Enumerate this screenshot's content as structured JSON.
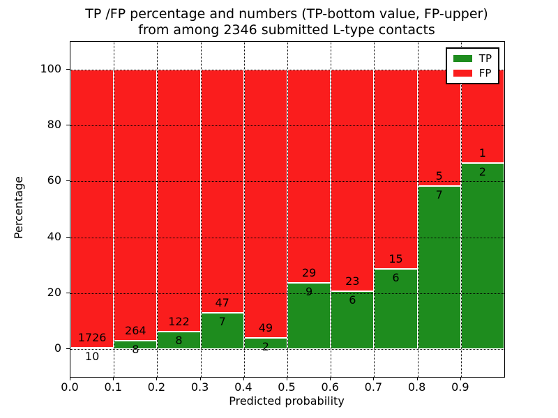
{
  "title": {
    "line1": "TP /FP percentage and numbers (TP-bottom value, FP-upper)",
    "line2": "from among 2346 submitted L-type contacts"
  },
  "chart_data": {
    "type": "bar",
    "stacked": true,
    "title": "TP /FP percentage and numbers (TP-bottom value, FP-upper) from among 2346 submitted L-type contacts",
    "xlabel": "Predicted probability",
    "ylabel": "Percentage",
    "xlim": [
      0.0,
      1.0
    ],
    "ylim": [
      -10,
      110
    ],
    "grid": true,
    "x_ticks": [
      0.0,
      0.1,
      0.2,
      0.3,
      0.4,
      0.5,
      0.6,
      0.7,
      0.8,
      0.9
    ],
    "x_tick_labels": [
      "0.0",
      "0.1",
      "0.2",
      "0.3",
      "0.4",
      "0.5",
      "0.6",
      "0.7",
      "0.8",
      "0.9"
    ],
    "y_ticks": [
      0,
      20,
      40,
      60,
      80,
      100
    ],
    "y_tick_labels": [
      "0",
      "20",
      "40",
      "60",
      "80",
      "100"
    ],
    "legend": {
      "position": "upper right",
      "entries": [
        {
          "label": "TP",
          "color": "#1e8c1e"
        },
        {
          "label": "FP",
          "color": "#fa1d1d"
        }
      ]
    },
    "series": [
      {
        "name": "TP",
        "color": "#1e8c1e"
      },
      {
        "name": "FP",
        "color": "#fa1d1d"
      }
    ],
    "bins": [
      {
        "x_start": 0.0,
        "x_end": 0.1,
        "tp": 10,
        "fp": 1726
      },
      {
        "x_start": 0.1,
        "x_end": 0.2,
        "tp": 8,
        "fp": 264
      },
      {
        "x_start": 0.2,
        "x_end": 0.3,
        "tp": 8,
        "fp": 122
      },
      {
        "x_start": 0.3,
        "x_end": 0.4,
        "tp": 7,
        "fp": 47
      },
      {
        "x_start": 0.4,
        "x_end": 0.5,
        "tp": 2,
        "fp": 49
      },
      {
        "x_start": 0.5,
        "x_end": 0.6,
        "tp": 9,
        "fp": 29
      },
      {
        "x_start": 0.6,
        "x_end": 0.7,
        "tp": 6,
        "fp": 23
      },
      {
        "x_start": 0.7,
        "x_end": 0.8,
        "tp": 6,
        "fp": 15
      },
      {
        "x_start": 0.8,
        "x_end": 0.9,
        "tp": 7,
        "fp": 5
      },
      {
        "x_start": 0.9,
        "x_end": 1.0,
        "tp": 2,
        "fp": 1
      }
    ]
  }
}
